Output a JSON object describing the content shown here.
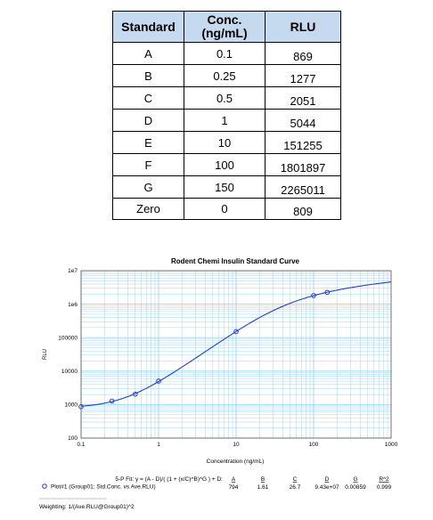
{
  "table": {
    "headers": [
      "Standard",
      "Conc.\n(ng/mL)",
      "RLU"
    ],
    "rows": [
      [
        "A",
        "0.1",
        "869"
      ],
      [
        "B",
        "0.25",
        "1277"
      ],
      [
        "C",
        "0.5",
        "2051"
      ],
      [
        "D",
        "1",
        "5044"
      ],
      [
        "E",
        "10",
        "151255"
      ],
      [
        "F",
        "100",
        "1801897"
      ],
      [
        "G",
        "150",
        "2265011"
      ],
      [
        "Zero",
        "0",
        "809"
      ]
    ]
  },
  "chart_data": {
    "type": "scatter",
    "title": "Rodent Chemi Insulin Standard Curve",
    "xlabel": "Concentration (ng/mL)",
    "ylabel": "RLU",
    "xscale": "log",
    "yscale": "log",
    "xlim": [
      0.1,
      1000
    ],
    "ylim": [
      100,
      10000000
    ],
    "x_ticks": [
      "0.1",
      "1",
      "10",
      "100",
      "1000"
    ],
    "y_ticks": [
      "100",
      "1000",
      "10000",
      "100000",
      "1e6",
      "1e7"
    ],
    "grid": true,
    "series": [
      {
        "name": "Plot#1 (Group01: Std.Conc. vs Ave.RLU)",
        "x": [
          0.1,
          0.25,
          0.5,
          1,
          10,
          100,
          150
        ],
        "y": [
          869,
          1277,
          2051,
          5044,
          151255,
          1801897,
          2265011
        ]
      }
    ],
    "fit": {
      "A": 794,
      "B": 1.61,
      "C": 26.7,
      "D": 94300000,
      "G": 0.00859
    },
    "colors": {
      "curve": "#1f3fc7",
      "grid": "#9fd4f0",
      "header_fill": "#c5d9ef"
    }
  },
  "legend": {
    "equation": "5-P Fit: y = (A - D)/( (1 + (x/C)^B)^G ) + D:",
    "param_headers": [
      "A",
      "B",
      "C",
      "D",
      "G",
      "R^2"
    ],
    "param_values": [
      "794",
      "1.61",
      "26.7",
      "9.43e+07",
      "0.00859",
      "0.999"
    ],
    "plot_label": "Plot#1 (Group01: Std.Conc. vs Ave.RLU)",
    "weighting": "Weighting: 1/(Ave.RLU@Group01)^2"
  }
}
